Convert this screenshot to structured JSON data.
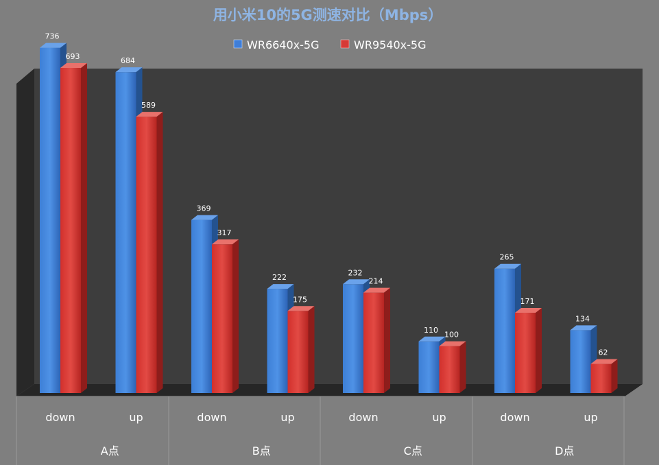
{
  "chart_data": {
    "type": "bar",
    "title": "用小米10的5G测速对比（Mbps）",
    "xlabel": "",
    "ylabel": "",
    "ylim": [
      0,
      750
    ],
    "grid": false,
    "legend_position": "top-center",
    "groups": [
      "A点",
      "B点",
      "C点",
      "D点"
    ],
    "categories": [
      "down",
      "up",
      "down",
      "up",
      "down",
      "up",
      "down",
      "up"
    ],
    "series": [
      {
        "name": "WR6640x-5G",
        "color": "#3f7ed8",
        "values": [
          736,
          684,
          369,
          222,
          232,
          110,
          265,
          134
        ]
      },
      {
        "name": "WR9540x-5G",
        "color": "#d63a36",
        "values": [
          693,
          589,
          317,
          175,
          214,
          100,
          171,
          62
        ]
      }
    ]
  }
}
